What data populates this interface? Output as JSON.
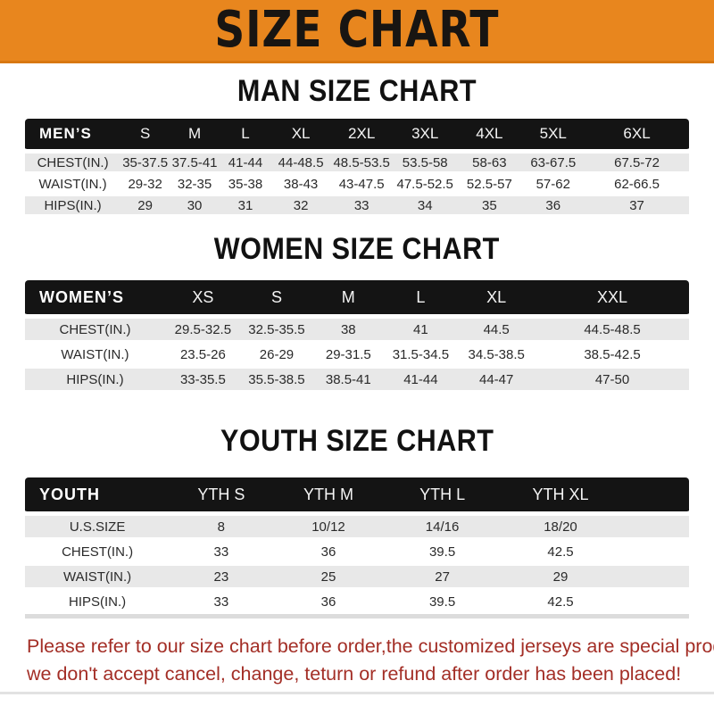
{
  "banner": {
    "title": "SIZE CHART"
  },
  "colors": {
    "banner_orange": "#E8861E",
    "table_header_black": "#141414",
    "row_gray": "#E8E8E8",
    "footer_red": "#A32E26"
  },
  "sections": [
    {
      "id": "men",
      "heading": "MAN SIZE CHART",
      "table": {
        "label": "MEN’S",
        "columns": [
          "S",
          "M",
          "L",
          "XL",
          "2XL",
          "3XL",
          "4XL",
          "5XL",
          "6XL"
        ],
        "rows": [
          {
            "label": "CHEST(IN.)",
            "values": [
              "35-37.5",
              "37.5-41",
              "41-44",
              "44-48.5",
              "48.5-53.5",
              "53.5-58",
              "58-63",
              "63-67.5",
              "67.5-72"
            ]
          },
          {
            "label": "WAIST(IN.)",
            "values": [
              "29-32",
              "32-35",
              "35-38",
              "38-43",
              "43-47.5",
              "47.5-52.5",
              "52.5-57",
              "57-62",
              "62-66.5"
            ]
          },
          {
            "label": "HIPS(IN.)",
            "values": [
              "29",
              "30",
              "31",
              "32",
              "33",
              "34",
              "35",
              "36",
              "37"
            ]
          }
        ]
      }
    },
    {
      "id": "women",
      "heading": "WOMEN SIZE CHART",
      "table": {
        "label": "WOMEN’S",
        "columns": [
          "XS",
          "S",
          "M",
          "L",
          "XL",
          "XXL"
        ],
        "rows": [
          {
            "label": "CHEST(IN.)",
            "values": [
              "29.5-32.5",
              "32.5-35.5",
              "38",
              "41",
              "44.5",
              "44.5-48.5"
            ]
          },
          {
            "label": "WAIST(IN.)",
            "values": [
              "23.5-26",
              "26-29",
              "29-31.5",
              "31.5-34.5",
              "34.5-38.5",
              "38.5-42.5"
            ]
          },
          {
            "label": "HIPS(IN.)",
            "values": [
              "33-35.5",
              "35.5-38.5",
              "38.5-41",
              "41-44",
              "44-47",
              "47-50"
            ]
          }
        ]
      }
    },
    {
      "id": "youth",
      "heading": "YOUTH SIZE CHART",
      "table": {
        "label": "YOUTH",
        "columns": [
          "YTH S",
          "YTH M",
          "YTH L",
          "YTH XL"
        ],
        "rows": [
          {
            "label": "U.S.SIZE",
            "values": [
              "8",
              "10/12",
              "14/16",
              "18/20"
            ]
          },
          {
            "label": "CHEST(IN.)",
            "values": [
              "33",
              "36",
              "39.5",
              "42.5"
            ]
          },
          {
            "label": "WAIST(IN.)",
            "values": [
              "23",
              "25",
              "27",
              "29"
            ]
          },
          {
            "label": "HIPS(IN.)",
            "values": [
              "33",
              "36",
              "39.5",
              "42.5"
            ]
          }
        ]
      }
    }
  ],
  "footer": {
    "line1": "Please refer to our size chart before order,the customized jerseys are special products,",
    "line2": "we don't accept cancel, change, teturn or refund after order has been placed!"
  }
}
